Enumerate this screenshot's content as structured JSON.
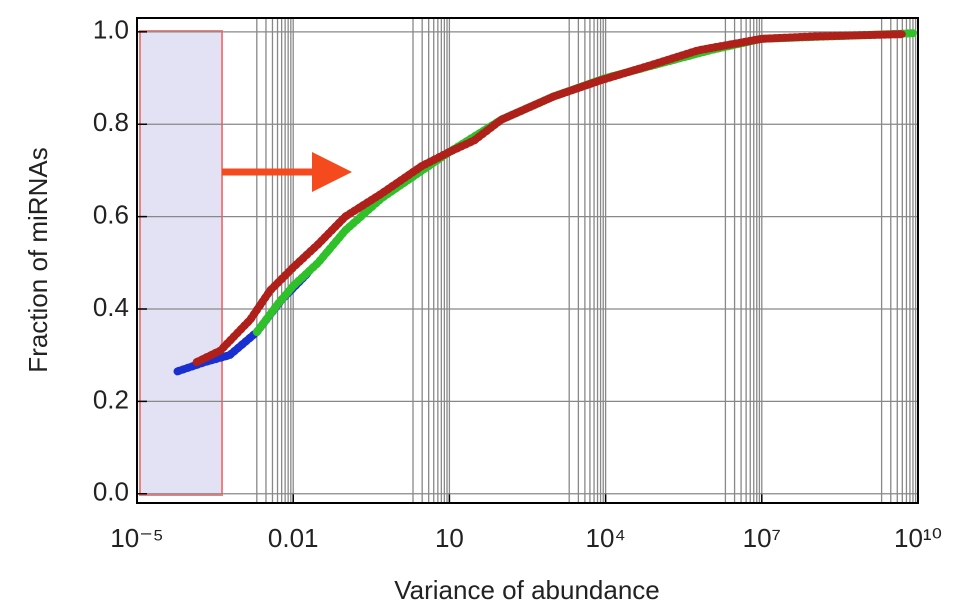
{
  "chart_data": {
    "type": "line",
    "x_label": "Variance of abundance",
    "y_label": "Fraction of miRNAs",
    "log_x": true,
    "grid": true,
    "xlim": [
      1e-05,
      10000000000
    ],
    "ylim": [
      -0.02,
      1.03
    ],
    "xticks": [
      {
        "value": 1e-05,
        "label": "10⁻⁵"
      },
      0.01,
      10,
      {
        "value": 10000,
        "label": "10⁴"
      },
      {
        "value": 10000000,
        "label": "10⁷"
      },
      {
        "value": 10000000000,
        "label": "10¹⁰"
      }
    ],
    "xminorticks": [
      0.002,
      0.003,
      0.004,
      0.005,
      0.006,
      0.007,
      0.008,
      0.009,
      2,
      3,
      4,
      5,
      6,
      7,
      8,
      9,
      2000,
      3000,
      4000,
      5000,
      6000,
      7000,
      8000,
      9000,
      2000000,
      3000000,
      4000000,
      5000000,
      6000000,
      7000000,
      8000000,
      9000000,
      2000000000,
      3000000000,
      4000000000,
      5000000000,
      6000000000,
      7000000000,
      8000000000,
      9000000000
    ],
    "yticks": [
      {
        "value": 0,
        "label": "0.0"
      },
      0.2,
      0.4,
      0.6,
      0.8,
      {
        "value": 1,
        "label": "1.0"
      }
    ],
    "series": [
      {
        "color": "#1a2fd0",
        "x": [
          6e-05,
          0.0002,
          0.0006,
          0.002,
          0.006,
          0.02
        ],
        "values": [
          0.265,
          0.285,
          0.3,
          0.35,
          0.42,
          0.48
        ]
      },
      {
        "color": "#2fc02a",
        "x": [
          0.002,
          0.005,
          0.01,
          0.03,
          0.1,
          0.5,
          3,
          10,
          100,
          1000,
          10000,
          100000,
          1000000,
          10000000,
          1000000000,
          8000000000
        ],
        "values": [
          0.35,
          0.41,
          0.45,
          0.5,
          0.57,
          0.64,
          0.7,
          0.74,
          0.81,
          0.86,
          0.9,
          0.93,
          0.96,
          0.985,
          0.993,
          0.997
        ]
      },
      {
        "color": "#b0201a",
        "x": [
          0.00014,
          0.0004,
          0.0015,
          0.0036,
          0.01,
          0.03,
          0.1,
          0.5,
          3,
          10,
          30,
          100,
          1000,
          8000,
          70000,
          600000,
          10000000,
          100000000,
          5000000000
        ],
        "values": [
          0.285,
          0.31,
          0.377,
          0.44,
          0.49,
          0.54,
          0.6,
          0.65,
          0.71,
          0.74,
          0.765,
          0.81,
          0.86,
          0.895,
          0.927,
          0.96,
          0.985,
          0.99,
          0.995
        ]
      }
    ]
  }
}
